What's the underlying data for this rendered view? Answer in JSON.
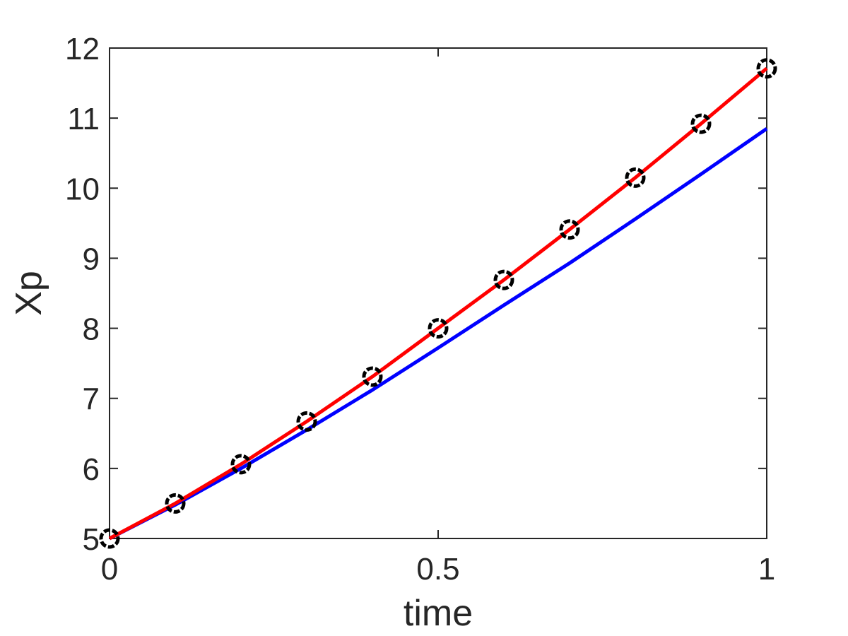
{
  "chart_data": {
    "type": "line",
    "xlabel": "time",
    "ylabel": "Xp",
    "x": [
      0,
      0.1,
      0.2,
      0.3,
      0.4,
      0.5,
      0.6,
      0.7,
      0.8,
      0.9,
      1
    ],
    "series": [
      {
        "color": "#0000ff",
        "mode": "line",
        "values": [
          5,
          5.48,
          6.0,
          6.55,
          7.12,
          7.72,
          8.33,
          8.93,
          9.56,
          10.2,
          10.85
        ]
      },
      {
        "color": "#ff0000",
        "mode": "line",
        "values": [
          5,
          5.5,
          6.06,
          6.67,
          7.31,
          8.0,
          8.69,
          9.41,
          10.15,
          10.92,
          11.71
        ]
      },
      {
        "color": "#000000",
        "mode": "markers",
        "values": [
          5,
          5.5,
          6.06,
          6.67,
          7.31,
          8.0,
          8.69,
          9.41,
          10.15,
          10.92,
          11.71
        ]
      }
    ],
    "xlim": [
      0,
      1
    ],
    "xticks": [
      0,
      0.5,
      1
    ],
    "ylim": [
      5,
      12
    ],
    "yticks": [
      5,
      6,
      7,
      8,
      9,
      10,
      11,
      12
    ],
    "grid": false,
    "box": true
  }
}
